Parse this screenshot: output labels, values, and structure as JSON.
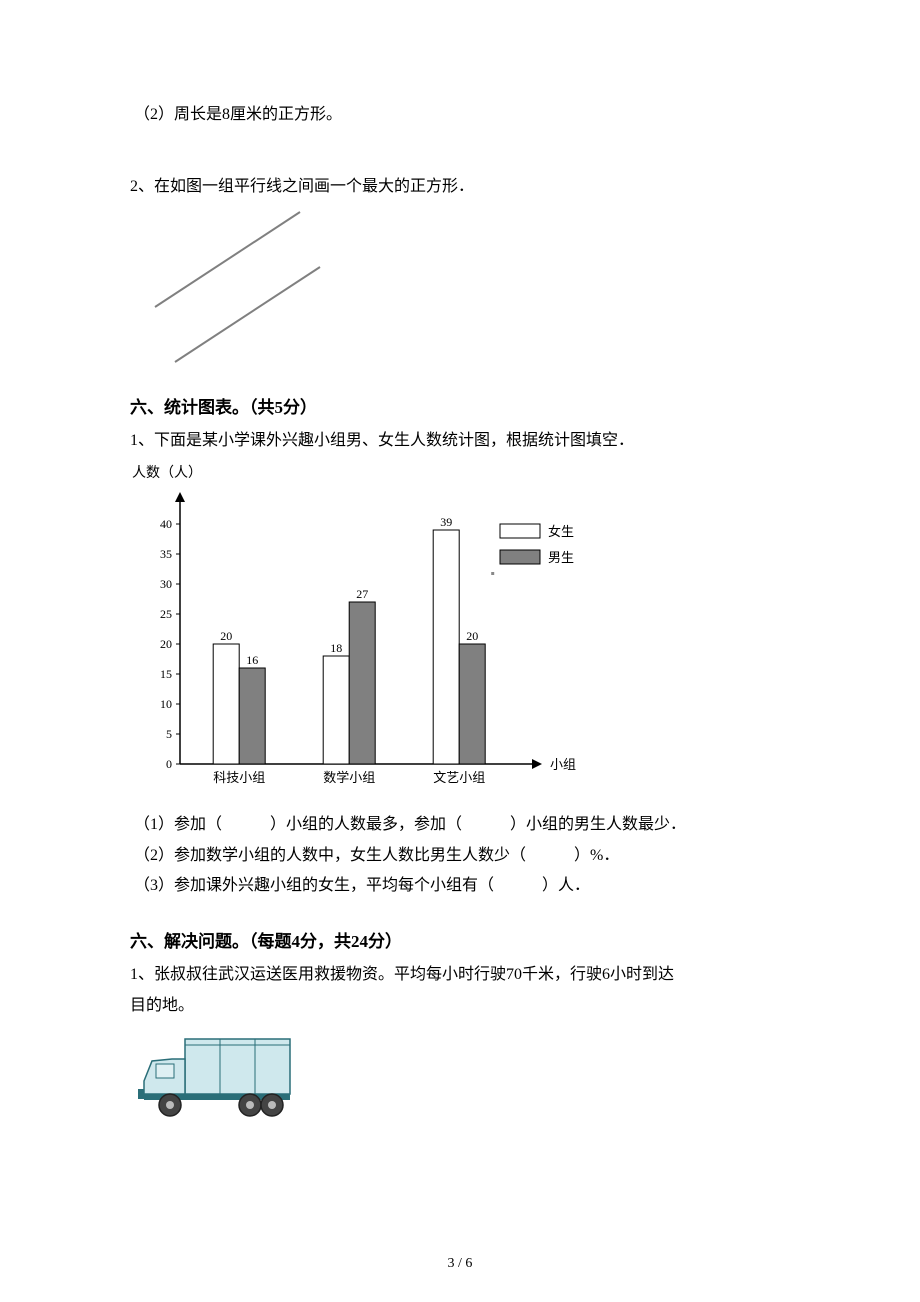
{
  "q_top": "（2）周长是8厘米的正方形。",
  "q2": "2、在如图一组平行线之间画一个最大的正方形．",
  "sec6a_title": "六、统计图表。（共5分）",
  "sec6a_q1": "1、下面是某小学课外兴趣小组男、女生人数统计图，根据统计图填空．",
  "chart": {
    "ylabel": "人数（人）",
    "xlabel": "小组",
    "legend": {
      "female": "女生",
      "male": "男生"
    },
    "categories": [
      "科技小组",
      "数学小组",
      "文艺小组"
    ],
    "female": [
      20,
      18,
      39
    ],
    "male": [
      16,
      27,
      20
    ],
    "yticks": [
      0,
      5,
      10,
      15,
      20,
      25,
      30,
      35,
      40
    ],
    "ylim": [
      0,
      45
    ],
    "female_fill": "#ffffff",
    "male_fill": "#808080",
    "stroke": "#000000",
    "tick_fontsize": 12,
    "cat_fontsize": 13,
    "label_fontsize": 12
  },
  "sec6a_sub1": "（1）参加（　　　）小组的人数最多，参加（　　　）小组的男生人数最少．",
  "sec6a_sub2": "（2）参加数学小组的人数中，女生人数比男生人数少（　　　）%．",
  "sec6a_sub3": "（3）参加课外兴趣小组的女生，平均每个小组有（　　　）人．",
  "sec6b_title": "六、解决问题。（每题4分，共24分）",
  "sec6b_q1a": "1、张叔叔往武汉运送医用救援物资。平均每小时行驶70千米，行驶6小时到达",
  "sec6b_q1b": "目的地。",
  "truck": {
    "body_fill": "#cfe8ed",
    "body_stroke": "#2a6e78",
    "wheel_fill": "#444444",
    "wheel_stroke": "#222222",
    "window_fill": "#dff0f3"
  },
  "footer": "3 / 6"
}
